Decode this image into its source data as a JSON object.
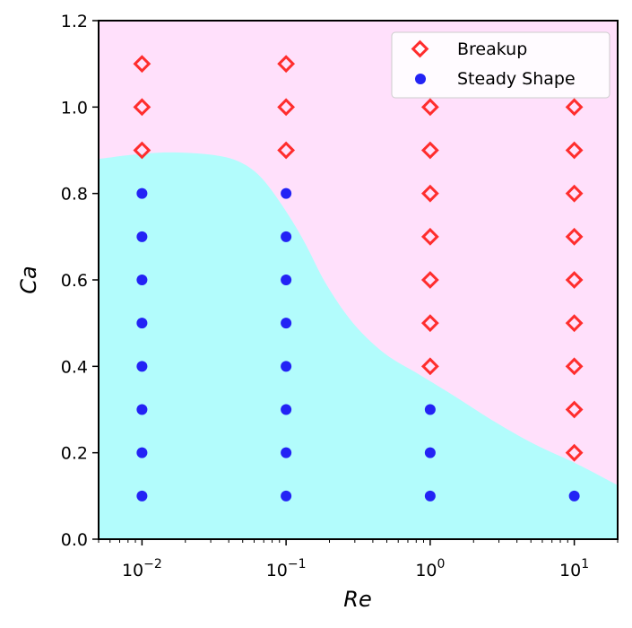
{
  "chart_data": {
    "type": "scatter",
    "xscale": "log",
    "xlim": [
      0.005,
      20
    ],
    "ylim": [
      0.0,
      1.2
    ],
    "xlabel": "Re",
    "ylabel": "Ca",
    "xticks": [
      {
        "value": 0.01,
        "base": "10",
        "exp": "−2"
      },
      {
        "value": 0.1,
        "base": "10",
        "exp": "−1"
      },
      {
        "value": 1,
        "base": "10",
        "exp": "0"
      },
      {
        "value": 10,
        "base": "10",
        "exp": "1"
      }
    ],
    "yticks": [
      {
        "value": 0.0,
        "label": "0.0"
      },
      {
        "value": 0.2,
        "label": "0.2"
      },
      {
        "value": 0.4,
        "label": "0.4"
      },
      {
        "value": 0.6,
        "label": "0.6"
      },
      {
        "value": 0.8,
        "label": "0.8"
      },
      {
        "value": 1.0,
        "label": "1.0"
      },
      {
        "value": 1.2,
        "label": "1.2"
      }
    ],
    "grid": false,
    "legend_position": "top-right",
    "regions": [
      {
        "region": "breakup",
        "color": "#ffe0fb"
      },
      {
        "region": "steady",
        "color": "#b2fcfc"
      }
    ],
    "boundary": [
      {
        "x": 0.005,
        "y": 0.88
      },
      {
        "x": 0.0089,
        "y": 0.89
      },
      {
        "x": 0.0155,
        "y": 0.895
      },
      {
        "x": 0.0295,
        "y": 0.89
      },
      {
        "x": 0.0461,
        "y": 0.875
      },
      {
        "x": 0.0658,
        "y": 0.84
      },
      {
        "x": 0.095,
        "y": 0.77
      },
      {
        "x": 0.133,
        "y": 0.69
      },
      {
        "x": 0.19,
        "y": 0.59
      },
      {
        "x": 0.292,
        "y": 0.5
      },
      {
        "x": 0.482,
        "y": 0.43
      },
      {
        "x": 0.85,
        "y": 0.38
      },
      {
        "x": 1.49,
        "y": 0.33
      },
      {
        "x": 2.86,
        "y": 0.27
      },
      {
        "x": 5.28,
        "y": 0.22
      },
      {
        "x": 10.3,
        "y": 0.175
      },
      {
        "x": 20,
        "y": 0.125
      }
    ],
    "series": [
      {
        "name": "Breakup",
        "marker": "diamond-open",
        "color": "#ff2d2d",
        "points": [
          {
            "x": 0.01,
            "y": 0.9
          },
          {
            "x": 0.01,
            "y": 1.0
          },
          {
            "x": 0.01,
            "y": 1.1
          },
          {
            "x": 0.1,
            "y": 0.9
          },
          {
            "x": 0.1,
            "y": 1.0
          },
          {
            "x": 0.1,
            "y": 1.1
          },
          {
            "x": 1,
            "y": 0.4
          },
          {
            "x": 1,
            "y": 0.5
          },
          {
            "x": 1,
            "y": 0.6
          },
          {
            "x": 1,
            "y": 0.7
          },
          {
            "x": 1,
            "y": 0.8
          },
          {
            "x": 1,
            "y": 0.9
          },
          {
            "x": 1,
            "y": 1.0
          },
          {
            "x": 10,
            "y": 0.2
          },
          {
            "x": 10,
            "y": 0.3
          },
          {
            "x": 10,
            "y": 0.4
          },
          {
            "x": 10,
            "y": 0.5
          },
          {
            "x": 10,
            "y": 0.6
          },
          {
            "x": 10,
            "y": 0.7
          },
          {
            "x": 10,
            "y": 0.8
          },
          {
            "x": 10,
            "y": 0.9
          },
          {
            "x": 10,
            "y": 1.0
          }
        ]
      },
      {
        "name": "Steady Shape",
        "marker": "circle-filled",
        "color": "#2323f5",
        "points": [
          {
            "x": 0.01,
            "y": 0.1
          },
          {
            "x": 0.01,
            "y": 0.2
          },
          {
            "x": 0.01,
            "y": 0.3
          },
          {
            "x": 0.01,
            "y": 0.4
          },
          {
            "x": 0.01,
            "y": 0.5
          },
          {
            "x": 0.01,
            "y": 0.6
          },
          {
            "x": 0.01,
            "y": 0.7
          },
          {
            "x": 0.01,
            "y": 0.8
          },
          {
            "x": 0.1,
            "y": 0.1
          },
          {
            "x": 0.1,
            "y": 0.2
          },
          {
            "x": 0.1,
            "y": 0.3
          },
          {
            "x": 0.1,
            "y": 0.4
          },
          {
            "x": 0.1,
            "y": 0.5
          },
          {
            "x": 0.1,
            "y": 0.6
          },
          {
            "x": 0.1,
            "y": 0.7
          },
          {
            "x": 0.1,
            "y": 0.8
          },
          {
            "x": 1,
            "y": 0.1
          },
          {
            "x": 1,
            "y": 0.2
          },
          {
            "x": 1,
            "y": 0.3
          },
          {
            "x": 10,
            "y": 0.1
          }
        ]
      }
    ]
  }
}
